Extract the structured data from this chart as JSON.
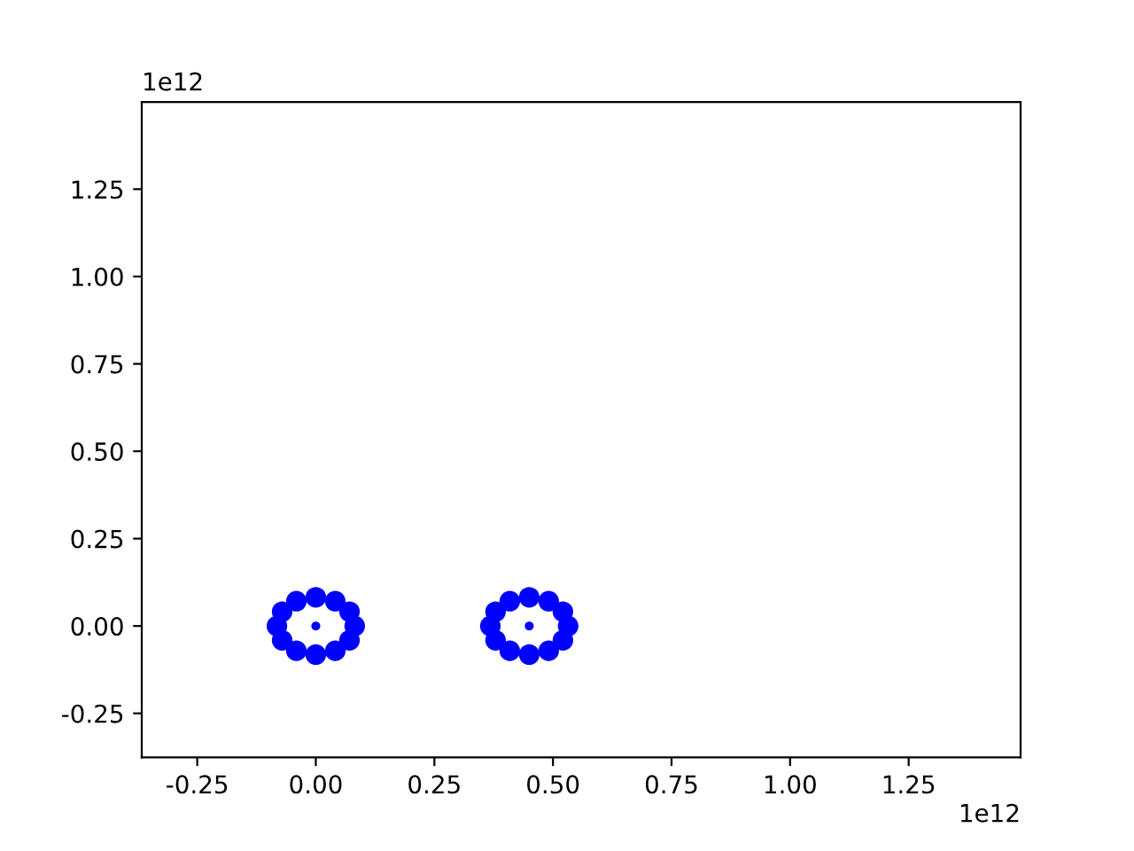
{
  "chart_data": {
    "type": "scatter",
    "series": [
      {
        "color": "#0000ff",
        "x": [
          0.082,
          0.071,
          0.041,
          0,
          -0.041,
          -0.071,
          -0.082,
          -0.071,
          -0.041,
          0,
          0.041,
          0.071,
          0.532,
          0.521,
          0.491,
          0.45,
          0.409,
          0.379,
          0.368,
          0.379,
          0.409,
          0.45,
          0.491,
          0.521
        ],
        "values": [
          0,
          0.041,
          0.071,
          0.082,
          0.071,
          0.041,
          0,
          -0.041,
          -0.071,
          -0.082,
          -0.071,
          -0.041,
          0,
          0.041,
          0.071,
          0.082,
          0.071,
          0.041,
          0,
          -0.041,
          -0.071,
          -0.082,
          -0.071,
          -0.041
        ]
      },
      {
        "color": "#0000ff",
        "x": [
          0,
          0.45
        ],
        "values": [
          0,
          0
        ]
      }
    ],
    "xlim": [
      -0.367,
      1.486
    ],
    "ylim": [
      -0.376,
      1.499
    ],
    "xticks": [
      -0.25,
      {
        "value": 0,
        "label": "0.00"
      },
      0.25,
      {
        "value": 0.5,
        "label": "0.50"
      },
      0.75,
      {
        "value": 1,
        "label": "1.00"
      },
      1.25
    ],
    "yticks": [
      -0.25,
      {
        "value": 0,
        "label": "0.00"
      },
      0.25,
      {
        "value": 0.5,
        "label": "0.50"
      },
      0.75,
      {
        "value": 1,
        "label": "1.00"
      },
      1.25
    ],
    "annotations": [
      "1e12",
      "1e12"
    ],
    "marker": "circle",
    "grid": false,
    "legend": false
  }
}
